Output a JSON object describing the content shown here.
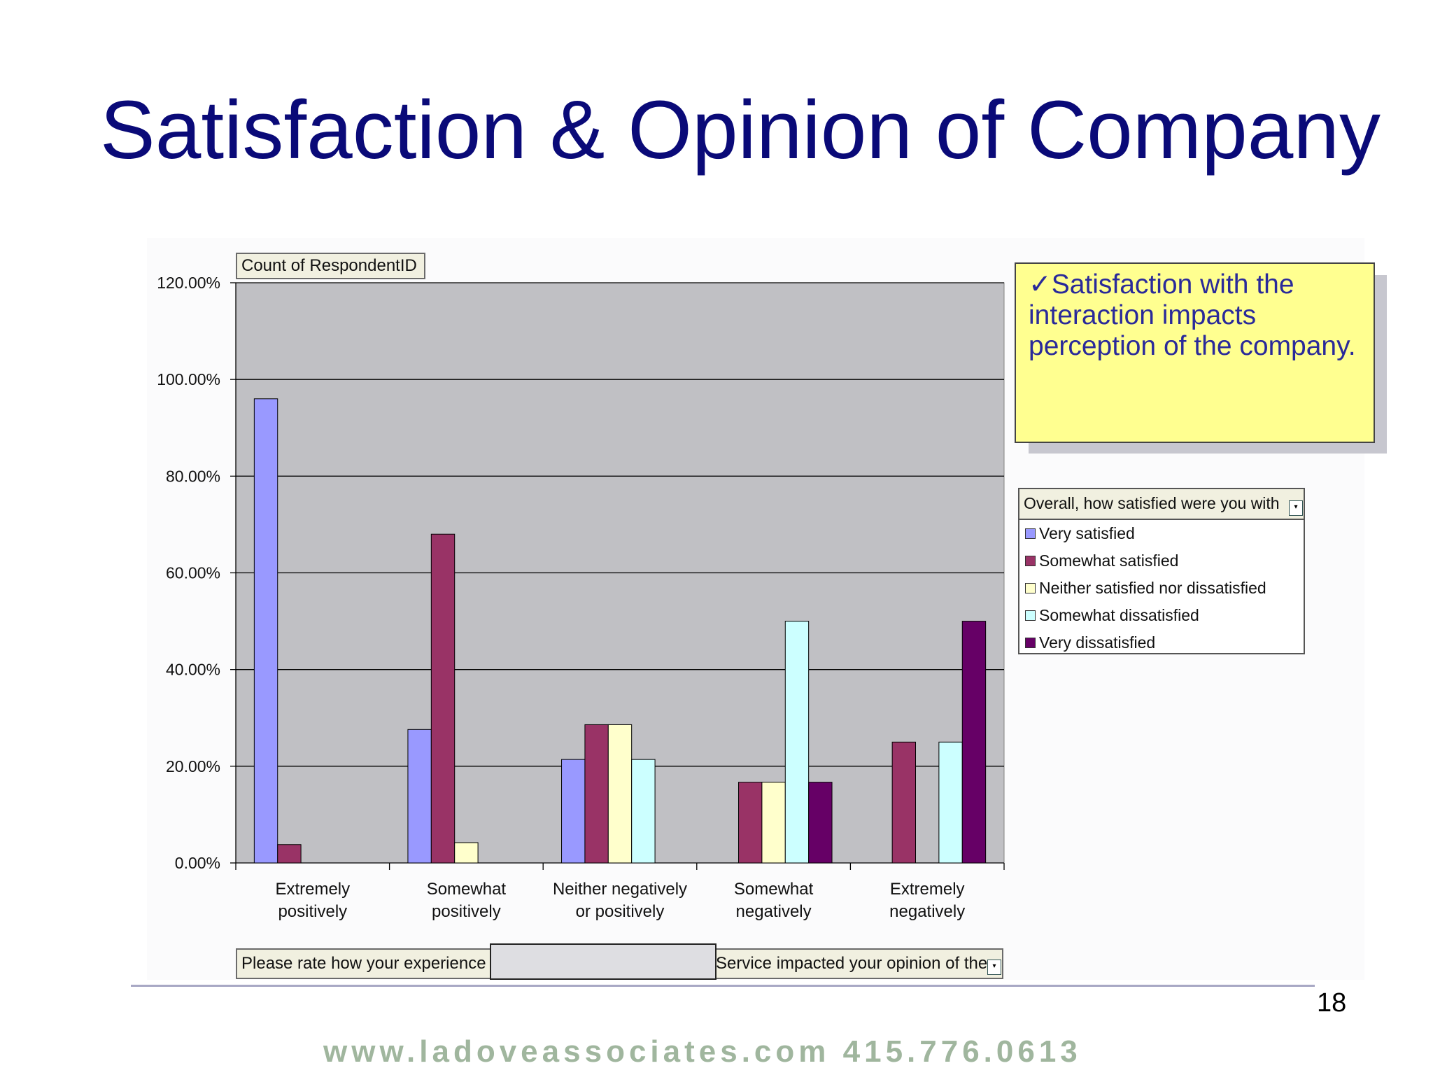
{
  "slide": {
    "title": "Satisfaction & Opinion of Company",
    "page_number": "18",
    "footer": "www.ladoveassociates.com  415.776.0613"
  },
  "note": {
    "check": "✓",
    "text": "Satisfaction with the interaction impacts perception of the company."
  },
  "pivot": {
    "data_field": "Count of RespondentID",
    "row_field": "Please rate how your experience",
    "row_field_tail": "Service impacted your opinion of the",
    "legend_title": "Overall, how satisfied were you with",
    "dropdown_icon": "chevron-down-icon"
  },
  "colors": {
    "plot_bg": "#c0c0c4",
    "title": "#0a0a78",
    "note_bg": "#ffff90"
  },
  "chart_data": {
    "type": "bar",
    "categories": [
      [
        "Extremely",
        "positively"
      ],
      [
        "Somewhat",
        "positively"
      ],
      [
        "Neither negatively",
        "or positively"
      ],
      [
        "Somewhat",
        "negatively"
      ],
      [
        "Extremely",
        "negatively"
      ]
    ],
    "series": [
      {
        "name": "Very satisfied",
        "color": "#9999ff",
        "values": [
          96.0,
          27.6,
          21.4,
          null,
          null
        ]
      },
      {
        "name": "Somewhat satisfied",
        "color": "#993366",
        "values": [
          3.8,
          68.0,
          28.6,
          16.7,
          25.0
        ]
      },
      {
        "name": "Neither satisfied nor dissatisfied",
        "color": "#ffffcc",
        "values": [
          null,
          4.2,
          28.6,
          16.7,
          null
        ]
      },
      {
        "name": "Somewhat dissatisfied",
        "color": "#ccffff",
        "values": [
          null,
          null,
          21.4,
          50.0,
          25.0
        ]
      },
      {
        "name": "Very dissatisfied",
        "color": "#660066",
        "values": [
          null,
          null,
          null,
          16.7,
          50.0
        ]
      }
    ],
    "yticks": [
      "0.00%",
      "20.00%",
      "40.00%",
      "60.00%",
      "80.00%",
      "100.00%",
      "120.00%"
    ],
    "ylim": [
      0,
      120
    ],
    "grid": true,
    "legend_position": "right"
  }
}
